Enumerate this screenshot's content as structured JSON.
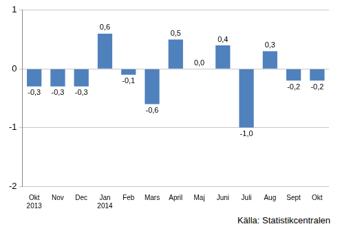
{
  "chart_data": {
    "type": "bar",
    "categories": [
      [
        "Okt",
        "2013"
      ],
      "Nov",
      "Dec",
      [
        "Jan",
        "2014"
      ],
      "Feb",
      "Mars",
      "April",
      "Maj",
      "Juni",
      "Juli",
      "Aug",
      "Sept",
      "Okt"
    ],
    "values": [
      -0.3,
      -0.3,
      -0.3,
      0.6,
      -0.1,
      -0.6,
      0.5,
      0.0,
      0.4,
      -1.0,
      0.3,
      -0.2,
      -0.2
    ],
    "value_labels": [
      "-0,3",
      "-0,3",
      "-0,3",
      "0,6",
      "-0,1",
      "-0,6",
      "0,5",
      "0,0",
      "0,4",
      "-1,0",
      "0,3",
      "-0,2",
      "-0,2"
    ],
    "data_labels": true,
    "color": "#4f81bd",
    "ylim": [
      -2,
      1
    ],
    "yticks": [
      -2,
      -1,
      0,
      1
    ],
    "grid": true,
    "annotation": "Källa: Statistikcentralen"
  }
}
